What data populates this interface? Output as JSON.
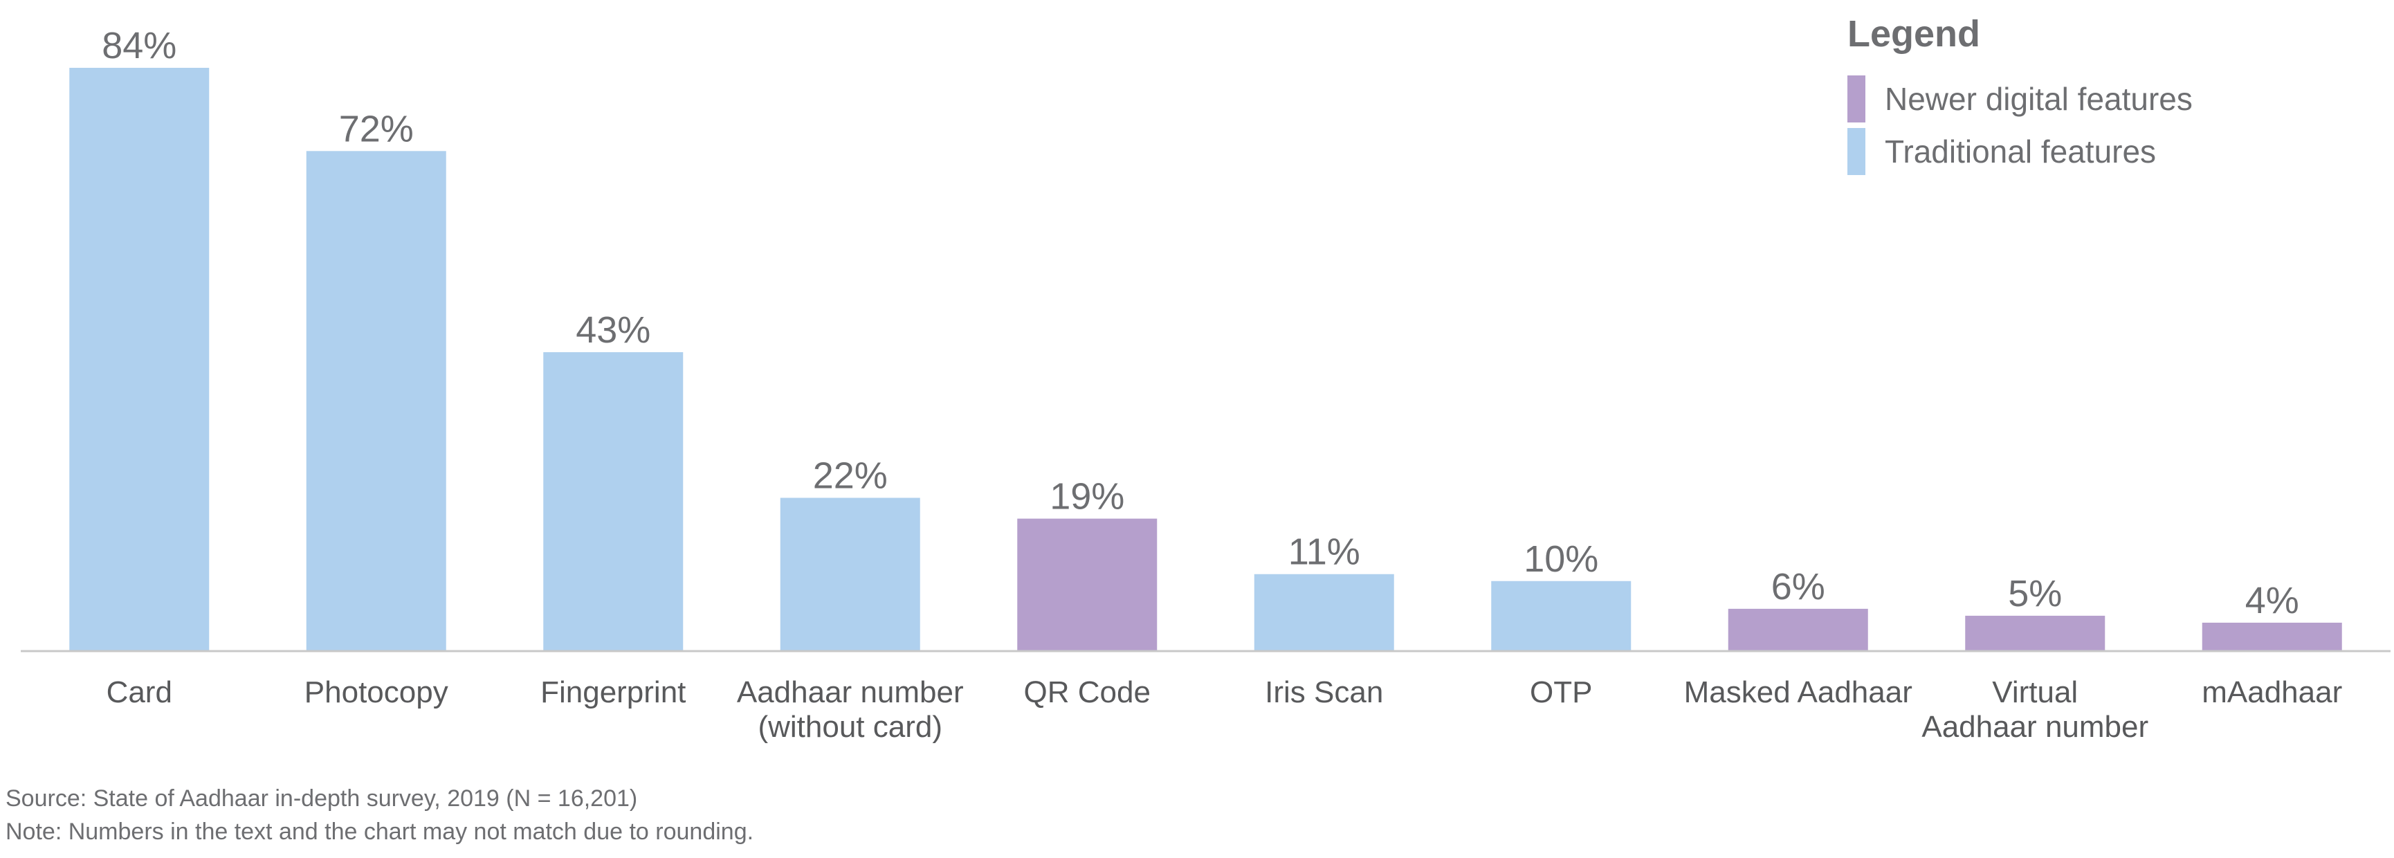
{
  "legend": {
    "title": "Legend",
    "items": [
      {
        "label": "Newer digital features",
        "color": "#b59fcc"
      },
      {
        "label": "Traditional features",
        "color": "#afd0ee"
      }
    ]
  },
  "footnotes": {
    "source": "Source: State of Aadhaar in-depth survey, 2019 (N = 16,201)",
    "note": "Note: Numbers in the text and the chart may not match due to rounding."
  },
  "chart_data": {
    "type": "bar",
    "categories": [
      [
        "Card"
      ],
      [
        "Photocopy"
      ],
      [
        "Fingerprint"
      ],
      [
        "Aadhaar number",
        "(without card)"
      ],
      [
        "QR Code"
      ],
      [
        "Iris Scan"
      ],
      [
        "OTP"
      ],
      [
        "Masked Aadhaar"
      ],
      [
        "Virtual",
        "Aadhaar number"
      ],
      [
        "mAadhaar"
      ]
    ],
    "values": [
      84,
      72,
      43,
      22,
      19,
      11,
      10,
      6,
      5,
      4
    ],
    "value_labels": [
      "84%",
      "72%",
      "43%",
      "22%",
      "19%",
      "11%",
      "10%",
      "6%",
      "5%",
      "4%"
    ],
    "feature_group": [
      "Traditional features",
      "Traditional features",
      "Traditional features",
      "Traditional features",
      "Newer digital features",
      "Traditional features",
      "Traditional features",
      "Newer digital features",
      "Newer digital features",
      "Newer digital features"
    ],
    "ylim": [
      0,
      84
    ],
    "grid": false,
    "legend_position": "top-right"
  }
}
